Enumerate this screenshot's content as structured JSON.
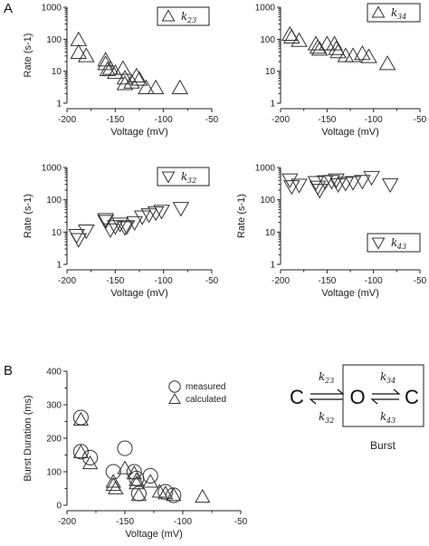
{
  "panel_labels": {
    "a": "A",
    "b": "B"
  },
  "chart_data": [
    {
      "id": "k23",
      "type": "scatter",
      "marker": "up",
      "legend": {
        "k": "k",
        "sub": "23"
      },
      "xlabel": "Voltage (mV)",
      "ylabel": "Rate (s-1)",
      "xlim": [
        -200,
        -50
      ],
      "ylim": [
        1,
        1000
      ],
      "yscale": "log",
      "xticks": [
        "-200",
        "-150",
        "-100",
        "-50"
      ],
      "yticks": [
        "1",
        "10",
        "100",
        "1000"
      ],
      "points": [
        [
          -188,
          95
        ],
        [
          -188,
          38
        ],
        [
          -180,
          30
        ],
        [
          -160,
          22
        ],
        [
          -160,
          17
        ],
        [
          -158,
          11
        ],
        [
          -155,
          12
        ],
        [
          -150,
          9
        ],
        [
          -142,
          12
        ],
        [
          -140,
          6
        ],
        [
          -140,
          4
        ],
        [
          -133,
          4.5
        ],
        [
          -128,
          7
        ],
        [
          -125,
          5.5
        ],
        [
          -118,
          3
        ],
        [
          -108,
          3
        ],
        [
          -83,
          3
        ]
      ]
    },
    {
      "id": "k34",
      "type": "scatter",
      "marker": "up",
      "legend": {
        "k": "k",
        "sub": "34"
      },
      "xlabel": "Voltage (mV)",
      "ylabel": "",
      "xlim": [
        -200,
        -50
      ],
      "ylim": [
        1,
        1000
      ],
      "yscale": "log",
      "xticks": [
        "-200",
        "-150",
        "-100",
        "-50"
      ],
      "yticks": [
        "1",
        "10",
        "100",
        "1000"
      ],
      "points": [
        [
          -190,
          140
        ],
        [
          -188,
          115
        ],
        [
          -180,
          90
        ],
        [
          -162,
          70
        ],
        [
          -160,
          55
        ],
        [
          -158,
          48
        ],
        [
          -150,
          70
        ],
        [
          -142,
          70
        ],
        [
          -140,
          50
        ],
        [
          -138,
          40
        ],
        [
          -130,
          30
        ],
        [
          -122,
          30
        ],
        [
          -112,
          35
        ],
        [
          -105,
          28
        ],
        [
          -85,
          17
        ]
      ]
    },
    {
      "id": "k32",
      "type": "scatter",
      "marker": "down",
      "legend": {
        "k": "k",
        "sub": "32"
      },
      "xlabel": "Voltage (mV)",
      "ylabel": "Rate (s-1)",
      "xlim": [
        -200,
        -50
      ],
      "ylim": [
        1,
        1000
      ],
      "yscale": "log",
      "xticks": [
        "-200",
        "-150",
        "-100",
        "-50"
      ],
      "yticks": [
        "1",
        "10",
        "100",
        "1000"
      ],
      "points": [
        [
          -190,
          8
        ],
        [
          -188,
          6
        ],
        [
          -180,
          11
        ],
        [
          -160,
          25
        ],
        [
          -160,
          22
        ],
        [
          -155,
          12
        ],
        [
          -150,
          15
        ],
        [
          -145,
          18
        ],
        [
          -140,
          14
        ],
        [
          -138,
          15
        ],
        [
          -130,
          20
        ],
        [
          -122,
          30
        ],
        [
          -115,
          35
        ],
        [
          -108,
          40
        ],
        [
          -102,
          45
        ],
        [
          -82,
          55
        ]
      ]
    },
    {
      "id": "k43",
      "type": "scatter",
      "marker": "down",
      "legend": {
        "k": "k",
        "sub": "43"
      },
      "xlabel": "Voltage (mV)",
      "ylabel": "Rate (s-1)",
      "xlim": [
        -200,
        -50
      ],
      "ylim": [
        1,
        1000
      ],
      "yscale": "log",
      "xticks": [
        "-200",
        "-150",
        "-100",
        "-50"
      ],
      "yticks": [
        "1",
        "10",
        "100",
        "1000"
      ],
      "points": [
        [
          -190,
          420
        ],
        [
          -188,
          260
        ],
        [
          -180,
          290
        ],
        [
          -162,
          350
        ],
        [
          -160,
          250
        ],
        [
          -158,
          200
        ],
        [
          -152,
          370
        ],
        [
          -145,
          380
        ],
        [
          -140,
          420
        ],
        [
          -138,
          300
        ],
        [
          -130,
          330
        ],
        [
          -122,
          350
        ],
        [
          -112,
          380
        ],
        [
          -102,
          500
        ],
        [
          -82,
          300
        ]
      ]
    },
    {
      "id": "burst",
      "type": "scatter",
      "xlabel": "Voltage (mV)",
      "ylabel": "Burst Duration (ms)",
      "xlim": [
        -200,
        -50
      ],
      "ylim": [
        0,
        400
      ],
      "xticks": [
        "-200",
        "-150",
        "-100",
        "-50"
      ],
      "yticks": [
        "0",
        "100",
        "200",
        "300",
        "400"
      ],
      "legend": {
        "measured": "measured",
        "calculated": "calculated"
      },
      "series": [
        {
          "name": "measured",
          "marker": "circle",
          "points": [
            [
              -188,
              262
            ],
            [
              -188,
              160
            ],
            [
              -180,
              142
            ],
            [
              -160,
              100
            ],
            [
              -150,
              170
            ],
            [
              -142,
              100
            ],
            [
              -140,
              80
            ],
            [
              -138,
              35
            ],
            [
              -128,
              88
            ],
            [
              -115,
              40
            ],
            [
              -108,
              30
            ]
          ]
        },
        {
          "name": "calculated",
          "marker": "up",
          "points": [
            [
              -188,
              255
            ],
            [
              -188,
              158
            ],
            [
              -180,
              125
            ],
            [
              -160,
              70
            ],
            [
              -160,
              60
            ],
            [
              -158,
              50
            ],
            [
              -150,
              110
            ],
            [
              -142,
              95
            ],
            [
              -140,
              75
            ],
            [
              -140,
              65
            ],
            [
              -138,
              30
            ],
            [
              -128,
              70
            ],
            [
              -120,
              40
            ],
            [
              -115,
              35
            ],
            [
              -108,
              30
            ],
            [
              -83,
              25
            ]
          ]
        }
      ]
    }
  ],
  "scheme": {
    "states": [
      "C",
      "O",
      "C"
    ],
    "rate_labels": {
      "k23": "23",
      "k32": "32",
      "k34": "34",
      "k43": "43"
    },
    "k": "k",
    "caption": "Burst"
  }
}
